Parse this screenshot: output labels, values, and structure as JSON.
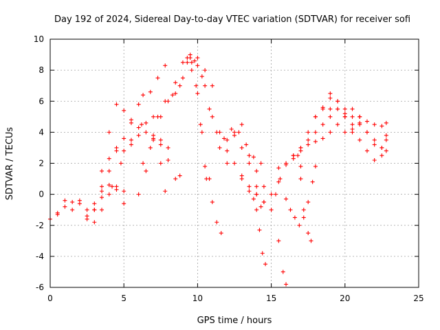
{
  "chart_data": {
    "type": "scatter",
    "title": "Day 192 of 2024, Sidereal Day-to-day VTEC variation (SDTVAR) for receiver sofi",
    "xlabel": "GPS time / hours",
    "ylabel": "SDTVAR / TECUs",
    "xlim": [
      0,
      25
    ],
    "ylim": [
      -6,
      10
    ],
    "xticks": [
      "0",
      "5",
      "10",
      "15",
      "20",
      "25"
    ],
    "yticks": [
      "-6",
      "-4",
      "-2",
      "0",
      "2",
      "4",
      "6",
      "8",
      "10"
    ],
    "grid": true,
    "marker": "+",
    "color": "#ff0000",
    "series": [
      {
        "x": [
          0.0,
          0.5,
          1.0,
          1.5,
          2.0,
          2.5,
          3.0,
          3.5,
          4.0,
          4.5,
          5.0
        ],
        "y": [
          -1.6,
          -1.3,
          -0.8,
          -0.5,
          -0.6,
          -1.0,
          -1.8,
          -1.0,
          0.0,
          0.5,
          0.2
        ]
      },
      {
        "x": [
          0.5,
          1.0,
          1.5,
          2.0,
          2.5,
          3.0,
          3.5,
          4.0,
          4.5,
          5.0
        ],
        "y": [
          -1.2,
          -0.4,
          -1.0,
          -0.4,
          -1.4,
          -0.6,
          0.2,
          0.6,
          0.3,
          -0.6
        ]
      },
      {
        "x": [
          2.5,
          3.0,
          3.5,
          4.0,
          4.5,
          5.0,
          5.5,
          6.0,
          6.5,
          7.0,
          7.5,
          8.0
        ],
        "y": [
          -1.6,
          -1.0,
          1.5,
          4.0,
          5.8,
          5.4,
          4.8,
          4.3,
          4.0,
          3.6,
          3.2,
          3.0
        ]
      },
      {
        "x": [
          3.0,
          3.5,
          4.0,
          4.5,
          5.0,
          5.5,
          6.0,
          6.5,
          7.0,
          7.5,
          8.0,
          8.5,
          8.8
        ],
        "y": [
          -1.0,
          0.5,
          2.3,
          3.0,
          2.8,
          3.2,
          3.8,
          4.6,
          5.0,
          3.5,
          2.2,
          1.0,
          1.2
        ]
      },
      {
        "x": [
          3.5,
          4.0,
          4.5,
          5.0,
          5.5,
          6.0,
          6.3,
          6.8,
          7.3,
          7.8
        ],
        "y": [
          -0.2,
          1.5,
          2.8,
          3.6,
          4.6,
          5.8,
          6.4,
          6.6,
          7.5,
          8.3
        ]
      },
      {
        "x": [
          4.2,
          4.8,
          5.5,
          6.2,
          7.0,
          7.5,
          7.8
        ],
        "y": [
          0.5,
          2.0,
          3.5,
          4.5,
          3.5,
          2.0,
          0.2
        ]
      },
      {
        "x": [
          6.0,
          6.5,
          7.0,
          7.5,
          8.0,
          8.5,
          9.0,
          9.5,
          10.0,
          10.5,
          11.0
        ],
        "y": [
          0.0,
          1.5,
          3.8,
          5.0,
          6.0,
          6.5,
          7.5,
          8.8,
          8.8,
          8.0,
          7.0
        ]
      },
      {
        "x": [
          6.3,
          6.8,
          7.3,
          7.8,
          8.3,
          8.8,
          9.3,
          9.8,
          10.3,
          10.8,
          11.3,
          11.8,
          12.3,
          12.8,
          13.3,
          13.8,
          14.3
        ],
        "y": [
          2.0,
          3.0,
          5.0,
          6.0,
          6.4,
          7.0,
          8.5,
          8.6,
          7.6,
          5.5,
          4.0,
          3.6,
          4.2,
          4.0,
          3.2,
          2.4,
          2.0
        ]
      },
      {
        "x": [
          8.5,
          9.0,
          9.5,
          10.0,
          10.5,
          11.0,
          11.5,
          12.0,
          12.5,
          13.0,
          13.5,
          14.0,
          14.5
        ],
        "y": [
          7.2,
          8.5,
          9.0,
          8.3,
          7.0,
          5.0,
          4.0,
          3.5,
          3.8,
          3.0,
          2.0,
          0.5,
          -0.5
        ]
      },
      {
        "x": [
          9.3,
          9.6,
          10.0,
          10.3,
          10.6,
          11.0,
          11.3,
          11.6
        ],
        "y": [
          8.8,
          8.0,
          6.5,
          4.0,
          1.0,
          -0.5,
          -1.8,
          -2.5
        ]
      },
      {
        "x": [
          9.6,
          9.9,
          10.2,
          10.5,
          10.8
        ],
        "y": [
          8.5,
          7.0,
          4.5,
          1.8,
          1.0
        ]
      },
      {
        "x": [
          11.5,
          12.0,
          12.5,
          13.0,
          13.5,
          14.0,
          14.3
        ],
        "y": [
          3.0,
          2.0,
          4.0,
          4.5,
          2.5,
          0.0,
          -0.8
        ]
      },
      {
        "x": [
          12.0,
          12.5,
          13.0,
          13.5,
          13.8,
          14.0,
          14.2,
          14.4,
          14.6
        ],
        "y": [
          2.8,
          2.0,
          1.2,
          0.2,
          -0.3,
          -1.0,
          -2.3,
          -3.8,
          -4.5
        ]
      },
      {
        "x": [
          13.0,
          13.5,
          14.0,
          14.5,
          15.0,
          15.5,
          16.0,
          16.5,
          17.0
        ],
        "y": [
          1.0,
          0.5,
          0.0,
          -0.5,
          0.0,
          0.8,
          2.0,
          2.5,
          1.8
        ]
      },
      {
        "x": [
          14.0,
          14.5,
          15.0,
          15.5,
          15.8,
          16.0
        ],
        "y": [
          1.5,
          0.5,
          -1.0,
          -3.0,
          -5.0,
          -5.8
        ]
      },
      {
        "x": [
          15.3,
          15.6,
          16.0,
          16.5,
          17.0,
          17.5,
          18.0,
          18.5,
          19.0,
          19.5,
          20.0,
          20.5,
          21.0
        ],
        "y": [
          0.0,
          1.0,
          2.0,
          2.5,
          3.0,
          3.5,
          4.0,
          4.5,
          5.5,
          4.5,
          4.0,
          4.5,
          5.0
        ]
      },
      {
        "x": [
          15.5,
          16.0,
          16.5,
          17.0,
          17.5,
          18.0,
          18.5,
          19.0,
          19.5,
          20.0,
          20.5,
          21.0,
          21.5,
          22.0,
          22.5,
          22.8
        ],
        "y": [
          1.7,
          1.9,
          2.3,
          2.8,
          3.2,
          3.4,
          3.6,
          5.0,
          5.5,
          5.2,
          5.5,
          5.0,
          4.7,
          4.5,
          4.4,
          4.6
        ]
      },
      {
        "x": [
          16.0,
          16.3,
          16.6,
          16.9,
          17.2,
          17.5,
          17.8,
          18.0
        ],
        "y": [
          -0.3,
          -1.0,
          -1.5,
          -2.0,
          -1.5,
          -0.5,
          0.8,
          1.8
        ]
      },
      {
        "x": [
          16.8,
          17.0,
          17.2,
          17.5,
          17.7
        ],
        "y": [
          2.5,
          1.0,
          -1.0,
          -2.5,
          -3.0
        ]
      },
      {
        "x": [
          17.0,
          17.5,
          18.0,
          18.5,
          19.0,
          19.5,
          20.0,
          20.5,
          21.0,
          21.5,
          22.0,
          22.5,
          22.8
        ],
        "y": [
          3.0,
          4.0,
          5.0,
          5.6,
          6.5,
          6.0,
          5.5,
          5.0,
          4.6,
          4.0,
          3.5,
          3.0,
          2.8
        ]
      },
      {
        "x": [
          18.0,
          18.5,
          19.0,
          19.5,
          20.0,
          20.5,
          21.0,
          21.5,
          22.0,
          22.5,
          22.8
        ],
        "y": [
          5.0,
          5.5,
          6.2,
          6.0,
          5.0,
          4.0,
          4.5,
          4.0,
          3.2,
          2.5,
          3.5
        ]
      },
      {
        "x": [
          19.0,
          19.5,
          20.0,
          20.5,
          21.0,
          21.5,
          22.0,
          22.5,
          22.8
        ],
        "y": [
          4.0,
          5.5,
          5.0,
          4.2,
          3.5,
          2.8,
          2.2,
          3.0,
          3.8
        ]
      }
    ]
  }
}
